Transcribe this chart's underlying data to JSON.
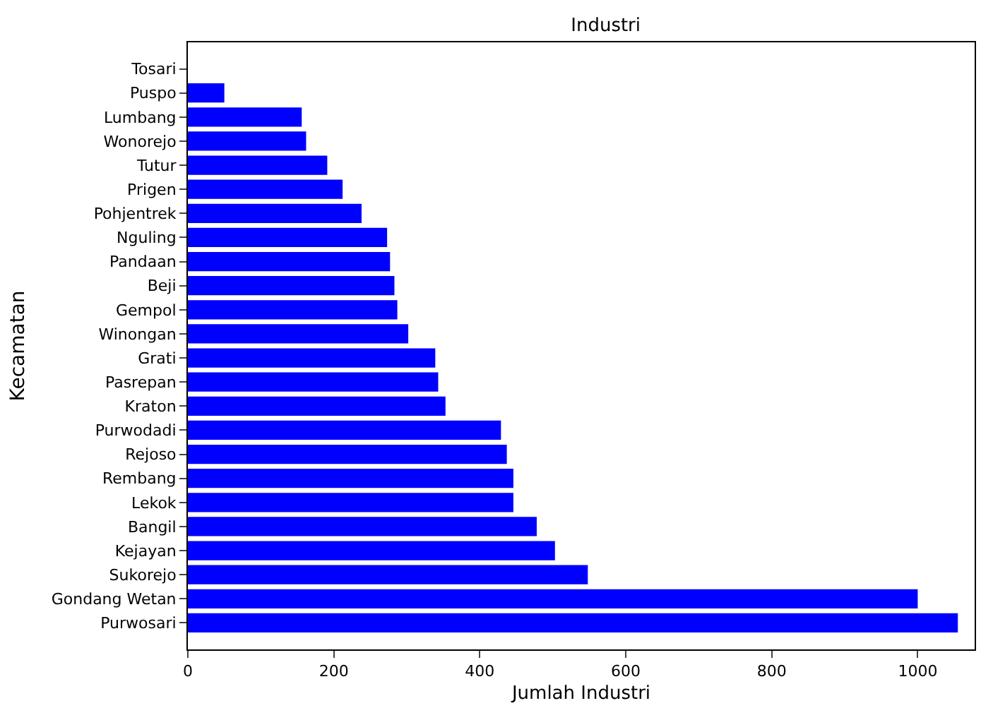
{
  "chart_data": {
    "type": "bar",
    "orientation": "horizontal",
    "title": "Industri",
    "xlabel": "Jumlah Industri",
    "ylabel": "Kecamatan",
    "categories": [
      "Tosari",
      "Puspo",
      "Lumbang",
      "Wonorejo",
      "Tutur",
      "Prigen",
      "Pohjentrek",
      "Nguling",
      "Pandaan",
      "Beji",
      "Gempol",
      "Winongan",
      "Grati",
      "Pasrepan",
      "Kraton",
      "Purwodadi",
      "Rejoso",
      "Rembang",
      "Lekok",
      "Bangil",
      "Kejayan",
      "Sukorejo",
      "Gondang Wetan",
      "Purwosari"
    ],
    "values": [
      0,
      50,
      156,
      162,
      191,
      212,
      238,
      273,
      277,
      283,
      287,
      302,
      339,
      343,
      353,
      429,
      437,
      446,
      446,
      478,
      503,
      548,
      1000,
      1055
    ],
    "color": "#0000ff",
    "xlim": [
      0,
      1078
    ],
    "xticks": [
      0,
      200,
      400,
      600,
      800,
      1000
    ]
  }
}
